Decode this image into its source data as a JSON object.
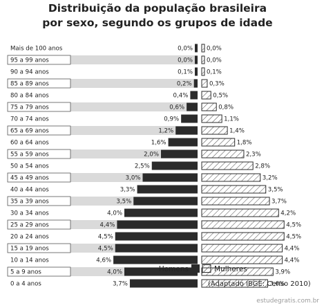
{
  "chart_data": {
    "type": "bar",
    "title_lines": [
      "Distribuição da população brasileira",
      "por sexo, segundo os grupos de idade"
    ],
    "categories": [
      "Mais de 100 anos",
      "95 a 99 anos",
      "90 a 94 anos",
      "85 a 89 anos",
      "80 a 84 anos",
      "75 a 79 anos",
      "70 a 74 anos",
      "65 a 69 anos",
      "60 a 64 anos",
      "55 a 59 anos",
      "50 a 54 anos",
      "45 a 49 anos",
      "40 a 44 anos",
      "35 a 39 anos",
      "30 a 34 anos",
      "25 a 29 anos",
      "20 a 24 anos",
      "15 a 19 anos",
      "10 a 14 anos",
      "5 a 9 anos",
      "0 a 4 anos"
    ],
    "series": [
      {
        "name": "Homens",
        "values": [
          0.0,
          0.0,
          0.1,
          0.2,
          0.4,
          0.6,
          0.9,
          1.2,
          1.6,
          2.0,
          2.5,
          3.0,
          3.3,
          3.5,
          4.0,
          4.4,
          4.5,
          4.5,
          4.6,
          4.0,
          3.7
        ],
        "labels": [
          "0,0%",
          "0,0%",
          "0,1%",
          "0,2%",
          "0,4%",
          "0,6%",
          "0,9%",
          "1,2%",
          "1,6%",
          "2,0%",
          "2,5%",
          "3,0%",
          "3,3%",
          "3,5%",
          "4,0%",
          "4,4%",
          "4,5%",
          "4,5%",
          "4,6%",
          "4,0%",
          "3,7%"
        ]
      },
      {
        "name": "Mulheres",
        "values": [
          0.0,
          0.0,
          0.1,
          0.3,
          0.5,
          0.8,
          1.1,
          1.4,
          1.8,
          2.3,
          2.8,
          3.2,
          3.5,
          3.7,
          4.2,
          4.5,
          4.5,
          4.4,
          4.4,
          3.9,
          3.6
        ],
        "labels": [
          "0,0%",
          "0,0%",
          "0,1%",
          "0,3%",
          "0,5%",
          "0,8%",
          "1,1%",
          "1,4%",
          "1,8%",
          "2,3%",
          "2,8%",
          "3,2%",
          "3,5%",
          "3,7%",
          "4,2%",
          "4,5%",
          "4,5%",
          "4,4%",
          "4,4%",
          "3,9%",
          "3,6%"
        ]
      }
    ],
    "legend": {
      "position": "bottom-center"
    },
    "source": "(Adaptado IBGE: Censo 2010)"
  },
  "colors": {
    "homens": "#2b2b2b",
    "mulheres_outline": "#2b2b2b",
    "hatch": "#555555",
    "row_shading": "#dadada",
    "watermark": "#9a9a9a"
  },
  "watermark": "estudegratis.com.br"
}
